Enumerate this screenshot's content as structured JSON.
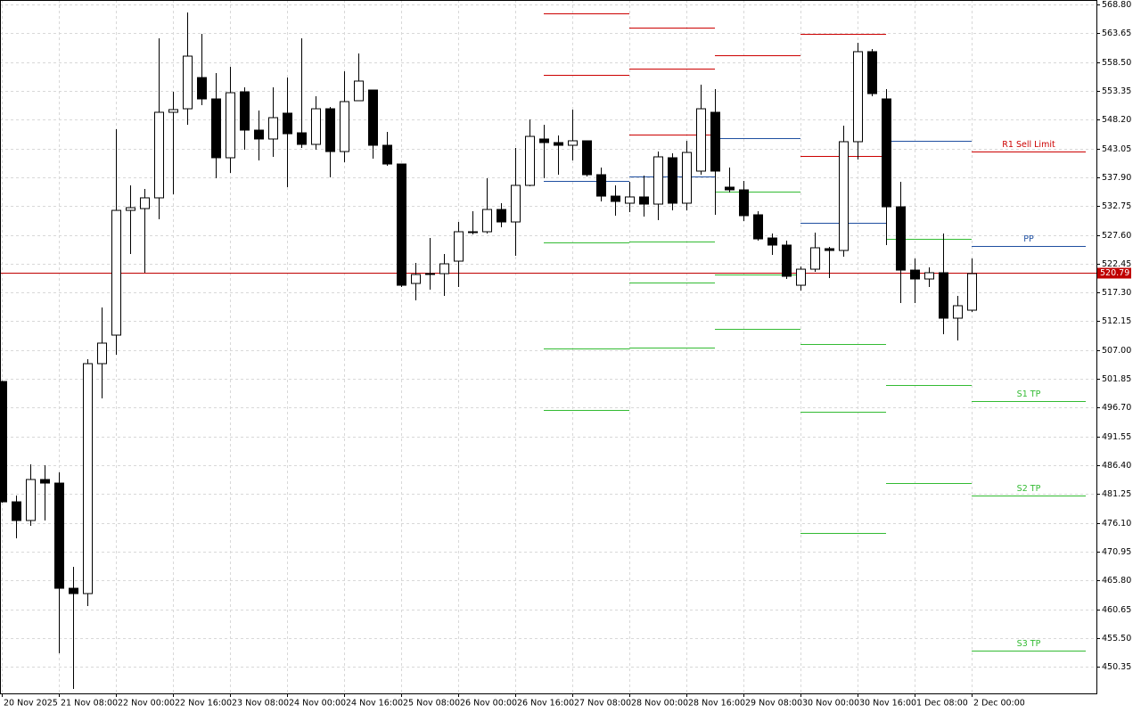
{
  "chart_data": {
    "type": "candlestick",
    "categories": [
      "20 Nov 2025",
      null,
      null,
      null,
      "21 Nov 08:00",
      null,
      null,
      null,
      "22 Nov 00:00",
      null,
      null,
      null,
      "22 Nov 16:00",
      null,
      null,
      null,
      "23 Nov 08:00",
      null,
      null,
      null,
      "24 Nov 00:00",
      null,
      null,
      null,
      "24 Nov 16:00",
      null,
      null,
      null,
      "25 Nov 08:00",
      null,
      null,
      null,
      "26 Nov 00:00",
      null,
      null,
      null,
      "26 Nov 16:00",
      null,
      null,
      null,
      "27 Nov 08:00",
      null,
      null,
      null,
      "28 Nov 00:00",
      null,
      null,
      null,
      "28 Nov 16:00",
      null,
      null,
      null,
      "29 Nov 08:00",
      null,
      null,
      null,
      "30 Nov 00:00",
      null,
      null,
      null,
      "30 Nov 16:00",
      null,
      null,
      null,
      "1 Dec 08:00",
      null,
      null,
      null,
      "2 Dec 00:00"
    ],
    "open": [
      501.38,
      479.86,
      476.52,
      483.85,
      483.21,
      464.4,
      463.45,
      504.57,
      509.67,
      531.98,
      532.3,
      534.22,
      549.52,
      550.15,
      555.73,
      551.91,
      541.39,
      553.18,
      546.33,
      544.74,
      549.36,
      545.85,
      543.78,
      550.15,
      542.5,
      551.59,
      553.5,
      543.62,
      540.27,
      518.91,
      520.67,
      520.67,
      522.9,
      528.16,
      528.16,
      532.14,
      529.91,
      536.45,
      544.74,
      544.1,
      543.62,
      544.42,
      538.36,
      534.53,
      533.26,
      534.38,
      533.1,
      541.39,
      533.26,
      539.0,
      549.52,
      536.13,
      535.65,
      531.19,
      527.04,
      525.77,
      518.59,
      521.46,
      525.13,
      524.81,
      544.26,
      560.36,
      551.91,
      532.62,
      521.3,
      519.71,
      520.83,
      512.7,
      514.13
    ],
    "high": [
      501.5,
      480.98,
      486.56,
      486.4,
      485.12,
      468.23,
      505.37,
      514.61,
      546.49,
      536.45,
      535.81,
      562.75,
      553.18,
      567.37,
      563.54,
      556.53,
      557.65,
      553.98,
      549.84,
      553.98,
      555.73,
      562.75,
      552.39,
      550.47,
      556.85,
      560.04,
      553.5,
      546.01,
      540.27,
      522.58,
      527.04,
      524.17,
      529.91,
      531.82,
      537.72,
      533.26,
      543.14,
      548.24,
      547.29,
      545.37,
      549.99,
      544.42,
      539.63,
      536.45,
      537.09,
      538.2,
      542.5,
      542.18,
      544.42,
      554.46,
      553.66,
      539.63,
      537.24,
      531.82,
      527.84,
      526.57,
      521.94,
      528.0,
      525.45,
      547.13,
      561.95,
      560.83,
      553.66,
      537.09,
      523.38,
      521.78,
      527.84,
      516.68,
      523.38
    ],
    "low": [
      479.7,
      473.33,
      475.56,
      476.52,
      452.77,
      446.39,
      461.22,
      498.35,
      506.16,
      524.17,
      520.83,
      530.39,
      534.85,
      547.29,
      550.79,
      537.72,
      538.68,
      542.82,
      540.91,
      541.55,
      536.13,
      543.14,
      542.82,
      537.88,
      540.59,
      551.59,
      541.23,
      539.95,
      518.28,
      515.89,
      517.8,
      516.68,
      518.28,
      527.68,
      527.84,
      528.96,
      523.86,
      536.29,
      537.72,
      538.36,
      540.91,
      538.04,
      533.58,
      531.03,
      531.67,
      530.87,
      530.23,
      531.98,
      531.98,
      538.36,
      531.19,
      535.17,
      530.07,
      526.57,
      524.02,
      519.71,
      517.64,
      520.99,
      519.87,
      523.7,
      541.07,
      552.39,
      525.77,
      515.41,
      515.41,
      518.28,
      509.83,
      508.71,
      513.81
    ],
    "close": [
      479.86,
      476.52,
      483.85,
      483.21,
      464.4,
      463.45,
      504.57,
      508.24,
      531.98,
      532.46,
      534.22,
      549.52,
      550.0,
      559.56,
      551.91,
      541.39,
      553.02,
      546.33,
      544.74,
      548.56,
      545.69,
      543.78,
      550.15,
      542.5,
      551.43,
      555.1,
      543.62,
      540.27,
      518.59,
      520.51,
      520.51,
      522.42,
      528.16,
      528.0,
      532.14,
      529.91,
      536.45,
      545.21,
      544.1,
      543.62,
      544.42,
      538.36,
      534.53,
      533.58,
      534.38,
      533.1,
      541.55,
      533.26,
      542.34,
      550.15,
      539.0,
      535.65,
      531.03,
      526.88,
      525.77,
      520.19,
      521.46,
      525.29,
      524.81,
      544.26,
      560.36,
      552.86,
      532.62,
      521.3,
      519.71,
      520.83,
      512.7,
      514.93,
      520.67
    ],
    "ylim": [
      445.6,
      569.6
    ],
    "yticks": [
      {
        "value": 568.8,
        "label": "568.80"
      },
      563.65,
      {
        "value": 558.5,
        "label": "558.50"
      },
      553.35,
      {
        "value": 548.2,
        "label": "548.20"
      },
      543.05,
      {
        "value": 537.9,
        "label": "537.90"
      },
      532.75,
      {
        "value": 527.6,
        "label": "527.60"
      },
      522.45,
      {
        "value": 517.3,
        "label": "517.30"
      },
      512.15,
      {
        "value": 507,
        "label": "507.00"
      },
      501.85,
      {
        "value": 496.7,
        "label": "496.70"
      },
      491.55,
      {
        "value": 486.4,
        "label": "486.40"
      },
      481.25,
      {
        "value": 476.1,
        "label": "476.10"
      },
      470.95,
      {
        "value": 465.8,
        "label": "465.80"
      },
      460.65,
      {
        "value": 455.5,
        "label": "455.50"
      },
      450.35
    ],
    "grid": true,
    "current_price": 520.79,
    "current_price_color": "#c00000",
    "levels": [
      {
        "from": 38,
        "to": 44,
        "value": 567.21,
        "color": "#cc0000"
      },
      {
        "from": 38,
        "to": 44,
        "value": 556.21,
        "color": "#cc0000"
      },
      {
        "from": 38,
        "to": 44,
        "value": 537.24,
        "color": "#1f4fa0"
      },
      {
        "from": 38,
        "to": 44,
        "value": 526.25,
        "color": "#33bb33"
      },
      {
        "from": 38,
        "to": 44,
        "value": 507.28,
        "color": "#33bb33"
      },
      {
        "from": 38,
        "to": 44,
        "value": 496.28,
        "color": "#33bb33"
      },
      {
        "from": 44,
        "to": 50,
        "value": 564.66,
        "color": "#cc0000"
      },
      {
        "from": 44,
        "to": 50,
        "value": 557.33,
        "color": "#cc0000"
      },
      {
        "from": 44,
        "to": 50,
        "value": 545.53,
        "color": "#cc0000"
      },
      {
        "from": 44,
        "to": 50,
        "value": 538.04,
        "color": "#1f4fa0"
      },
      {
        "from": 44,
        "to": 50,
        "value": 526.41,
        "color": "#33bb33"
      },
      {
        "from": 44,
        "to": 50,
        "value": 519.07,
        "color": "#33bb33"
      },
      {
        "from": 44,
        "to": 50,
        "value": 507.44,
        "color": "#33bb33"
      },
      {
        "from": 50,
        "to": 56,
        "value": 559.72,
        "color": "#cc0000"
      },
      {
        "from": 50,
        "to": 56,
        "value": 544.9,
        "color": "#1f4fa0"
      },
      {
        "from": 50,
        "to": 56,
        "value": 535.33,
        "color": "#33bb33"
      },
      {
        "from": 50,
        "to": 56,
        "value": 520.51,
        "color": "#33bb33"
      },
      {
        "from": 50,
        "to": 56,
        "value": 510.79,
        "color": "#33bb33"
      },
      {
        "from": 56,
        "to": 62,
        "value": 563.54,
        "color": "#cc0000"
      },
      {
        "from": 56,
        "to": 62,
        "value": 541.71,
        "color": "#cc0000"
      },
      {
        "from": 56,
        "to": 62,
        "value": 529.75,
        "color": "#1f4fa0"
      },
      {
        "from": 56,
        "to": 62,
        "value": 508.08,
        "color": "#33bb33"
      },
      {
        "from": 56,
        "to": 62,
        "value": 495.96,
        "color": "#33bb33"
      },
      {
        "from": 56,
        "to": 62,
        "value": 474.29,
        "color": "#33bb33"
      },
      {
        "from": 62,
        "to": 68,
        "value": 544.42,
        "color": "#1f4fa0"
      },
      {
        "from": 62,
        "to": 68,
        "value": 526.88,
        "color": "#33bb33"
      },
      {
        "from": 62,
        "to": 68,
        "value": 500.74,
        "color": "#33bb33"
      },
      {
        "from": 62,
        "to": 68,
        "value": 483.21,
        "color": "#33bb33"
      },
      {
        "from": 68,
        "to": 76,
        "value": 542.5,
        "color": "#cc0000",
        "label": "R1 Sell Limit"
      },
      {
        "from": 68,
        "to": 76,
        "value": 525.61,
        "color": "#1f4fa0",
        "label": "PP"
      },
      {
        "from": 68,
        "to": 76,
        "value": 497.88,
        "color": "#33bb33",
        "label": "S1 TP"
      },
      {
        "from": 68,
        "to": 76,
        "value": 480.98,
        "color": "#33bb33",
        "label": "S2 TP"
      },
      {
        "from": 68,
        "to": 76,
        "value": 453.25,
        "color": "#33bb33",
        "label": "S3 TP"
      }
    ]
  }
}
